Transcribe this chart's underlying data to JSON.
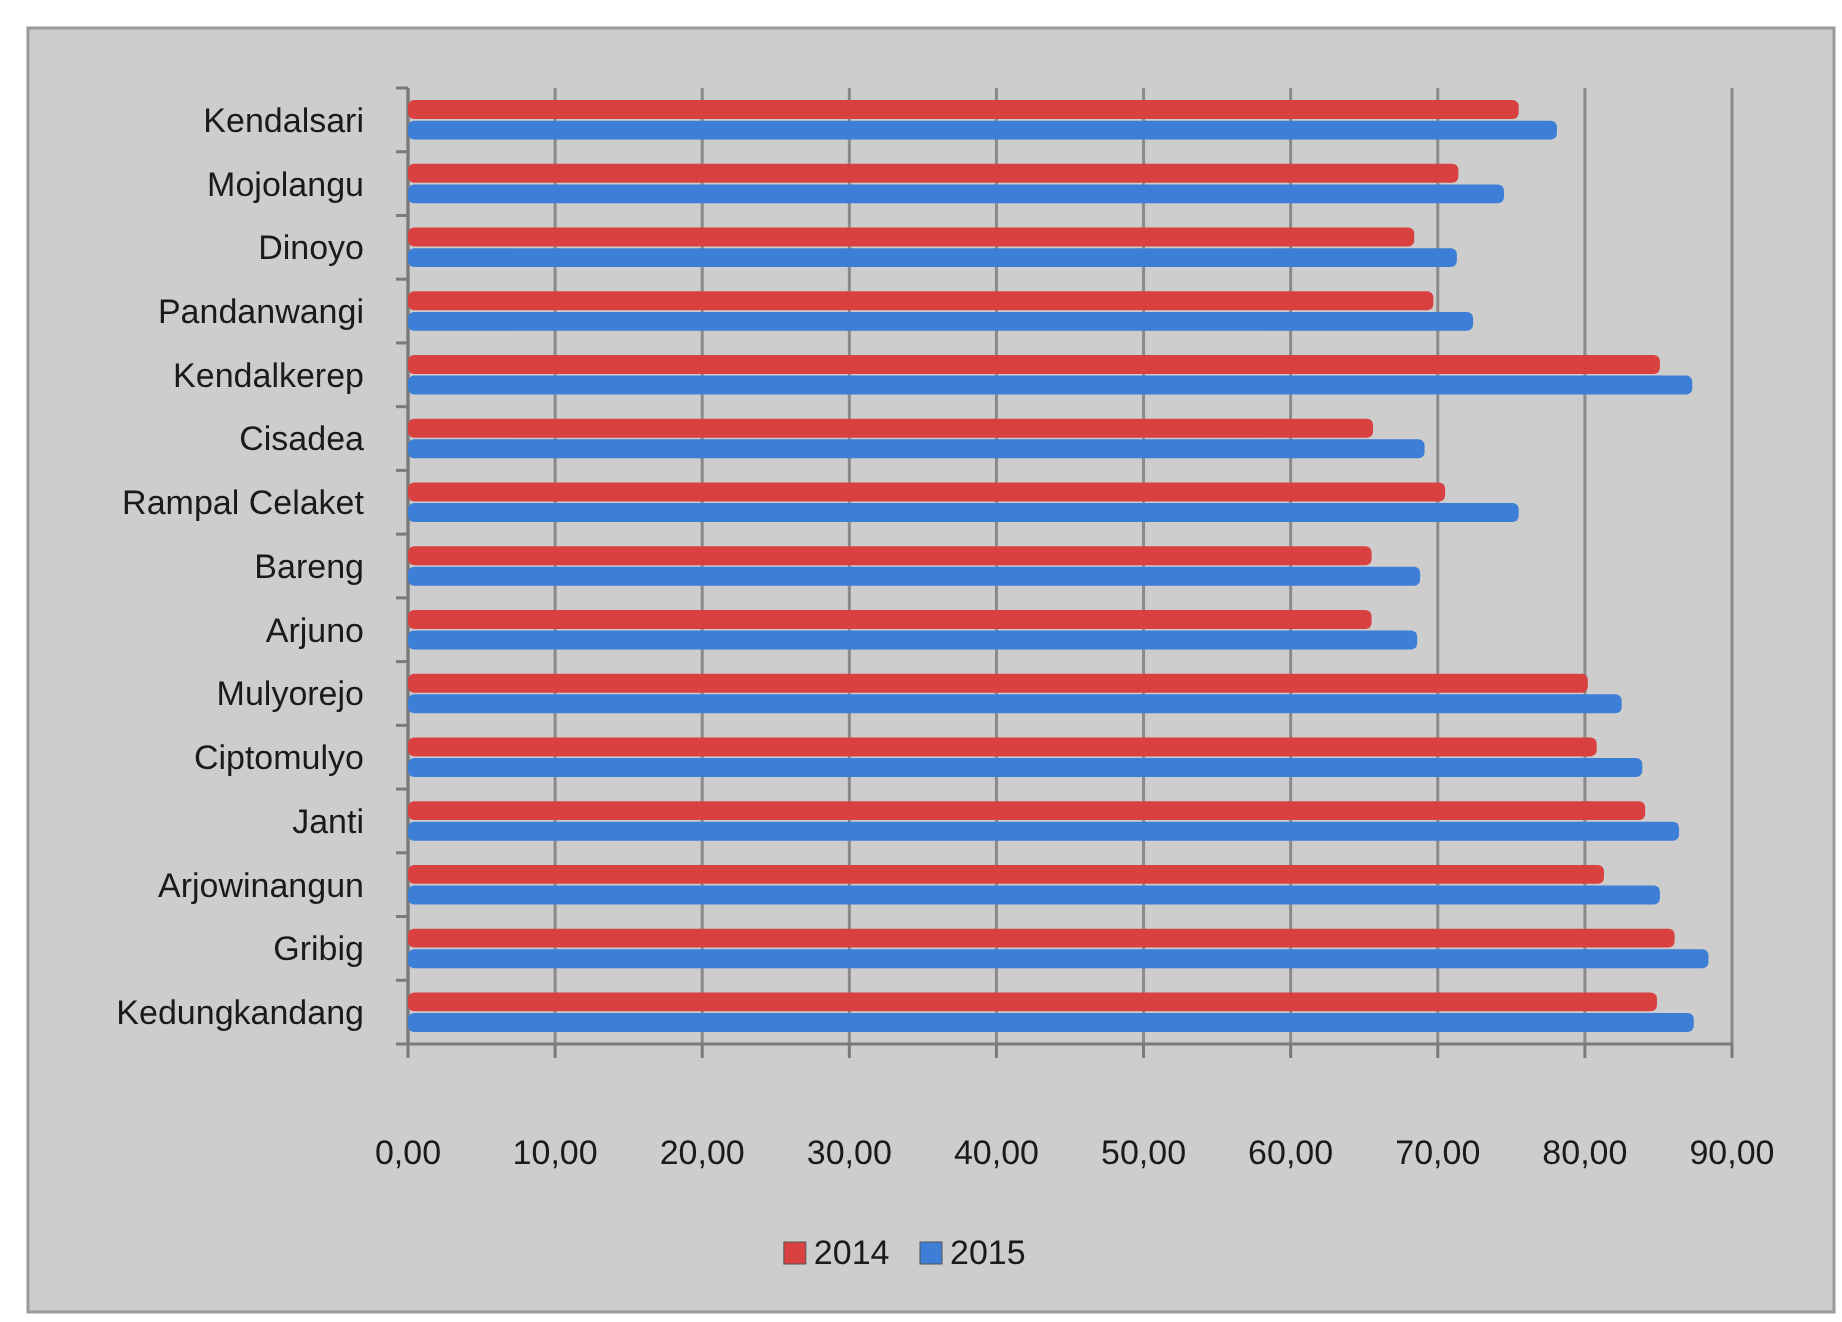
{
  "chart_data": {
    "type": "bar",
    "orientation": "horizontal",
    "categories": [
      "Kendalsari",
      "Mojolangu",
      "Dinoyo",
      "Pandanwangi",
      "Kendalkerep",
      "Cisadea",
      "Rampal Celaket",
      "Bareng",
      "Arjuno",
      "Mulyorejo",
      "Ciptomulyo",
      "Janti",
      "Arjowinangun",
      "Gribig",
      "Kedungkandang"
    ],
    "series": [
      {
        "name": "2014",
        "color": "#d94140",
        "values": [
          75.5,
          71.4,
          68.4,
          69.7,
          85.1,
          65.6,
          70.5,
          65.5,
          65.5,
          80.2,
          80.8,
          84.1,
          81.3,
          86.1,
          84.9
        ]
      },
      {
        "name": "2015",
        "color": "#3d7ed6",
        "values": [
          78.1,
          74.5,
          71.3,
          72.4,
          87.3,
          69.1,
          75.5,
          68.8,
          68.6,
          82.5,
          83.9,
          86.4,
          85.1,
          88.4,
          87.4
        ]
      }
    ],
    "xlim": [
      0,
      90
    ],
    "xticks": [
      {
        "value": 0,
        "label": "0,00"
      },
      {
        "value": 10,
        "label": "10,00"
      },
      {
        "value": 20,
        "label": "20,00"
      },
      {
        "value": 30,
        "label": "30,00"
      },
      {
        "value": 40,
        "label": "40,00"
      },
      {
        "value": 50,
        "label": "50,00"
      },
      {
        "value": 60,
        "label": "60,00"
      },
      {
        "value": 70,
        "label": "70,00"
      },
      {
        "value": 80,
        "label": "80,00"
      },
      {
        "value": 90,
        "label": "90,00"
      }
    ],
    "grid": "x",
    "legend": "bottom"
  }
}
